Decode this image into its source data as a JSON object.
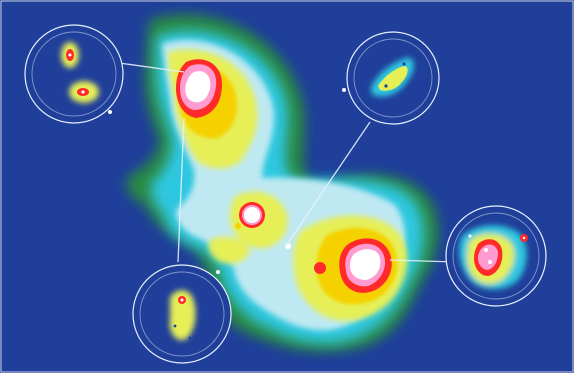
{
  "image": {
    "background_color": "#1f3f9a",
    "heatmap_palette": [
      "#2a8e3c",
      "#2fc7e0",
      "#bfe9f2",
      "#e6ef56",
      "#f6d100",
      "#ff2a2a",
      "#ff9bd0",
      "#ffffff"
    ],
    "callout_color": "#e8f1ff"
  }
}
